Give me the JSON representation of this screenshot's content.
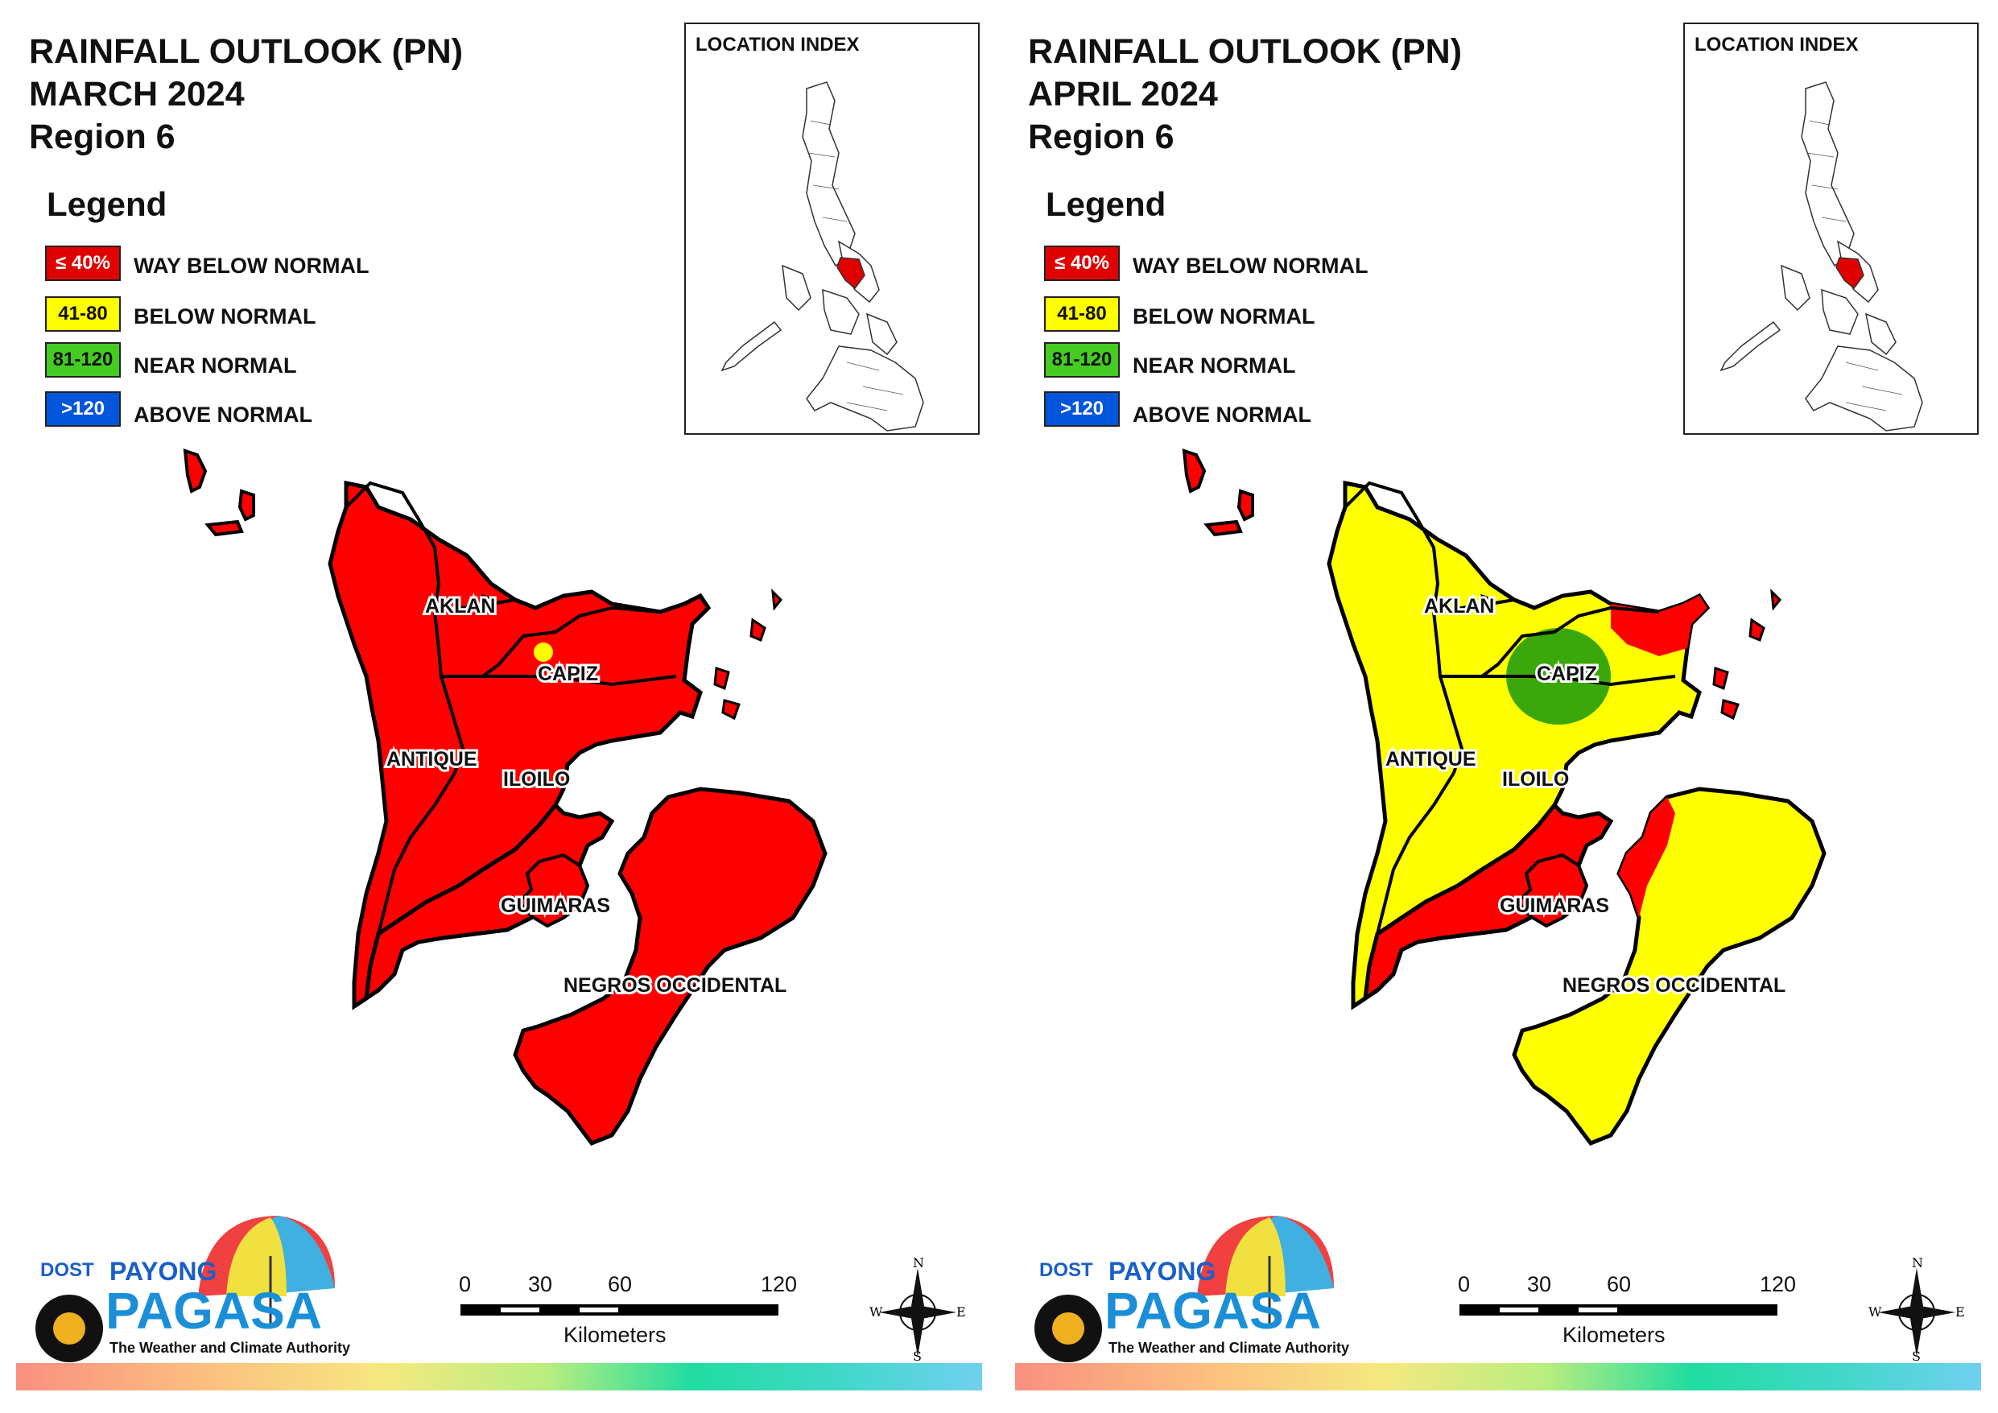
{
  "maps": [
    {
      "id": "march",
      "title_line1": "RAINFALL OUTLOOK (PN)",
      "title_line2": "MARCH 2024",
      "title_line3": "Region 6",
      "fills": {
        "north": "#ff0000",
        "capiz_center": "#ff0000",
        "south_iloilo": "#ff0000",
        "negros": "#ff0000",
        "guimaras": "#ff0000",
        "islands": "#ff0000",
        "small_spot": "#ffff00"
      }
    },
    {
      "id": "april",
      "title_line1": "RAINFALL OUTLOOK (PN)",
      "title_line2": "APRIL 2024",
      "title_line3": "Region 6",
      "fills": {
        "north": "#ffff00",
        "capiz_center": "#3aa80a",
        "south_iloilo": "#ff0000",
        "negros": "#ffff00",
        "guimaras": "#ff0000",
        "islands": "#ff0000",
        "small_spot": "#3aa80a"
      }
    }
  ],
  "legend": {
    "title": "Legend",
    "items": [
      {
        "swatch": "≤ 40%",
        "label": "WAY BELOW NORMAL",
        "color": "#e00000",
        "text_color": "#ffffff"
      },
      {
        "swatch": "41-80",
        "label": "BELOW NORMAL",
        "color": "#ffff00",
        "text_color": "#111111"
      },
      {
        "swatch": "81-120",
        "label": "NEAR NORMAL",
        "color": "#44cc22",
        "text_color": "#111111"
      },
      {
        "swatch": ">120",
        "label": "ABOVE NORMAL",
        "color": "#0055dd",
        "text_color": "#ffffff"
      }
    ]
  },
  "inset": {
    "title": "LOCATION INDEX",
    "highlight_color": "#e00000"
  },
  "provinces": {
    "aklan": "AKLAN",
    "capiz": "CAPIZ",
    "antique": "ANTIQUE",
    "iloilo": "ILOILO",
    "guimaras": "GUIMARAS",
    "negros": "NEGROS OCCIDENTAL"
  },
  "scale": {
    "ticks": [
      "0",
      "30",
      "60",
      "120"
    ],
    "unit": "Kilometers"
  },
  "compass": {
    "n": "N",
    "s": "S",
    "e": "E",
    "w": "W"
  },
  "logo": {
    "dost": "DOST",
    "payong": "PAYONG",
    "pagasa": "PAGASA",
    "tagline": "The Weather and Climate Authority"
  }
}
